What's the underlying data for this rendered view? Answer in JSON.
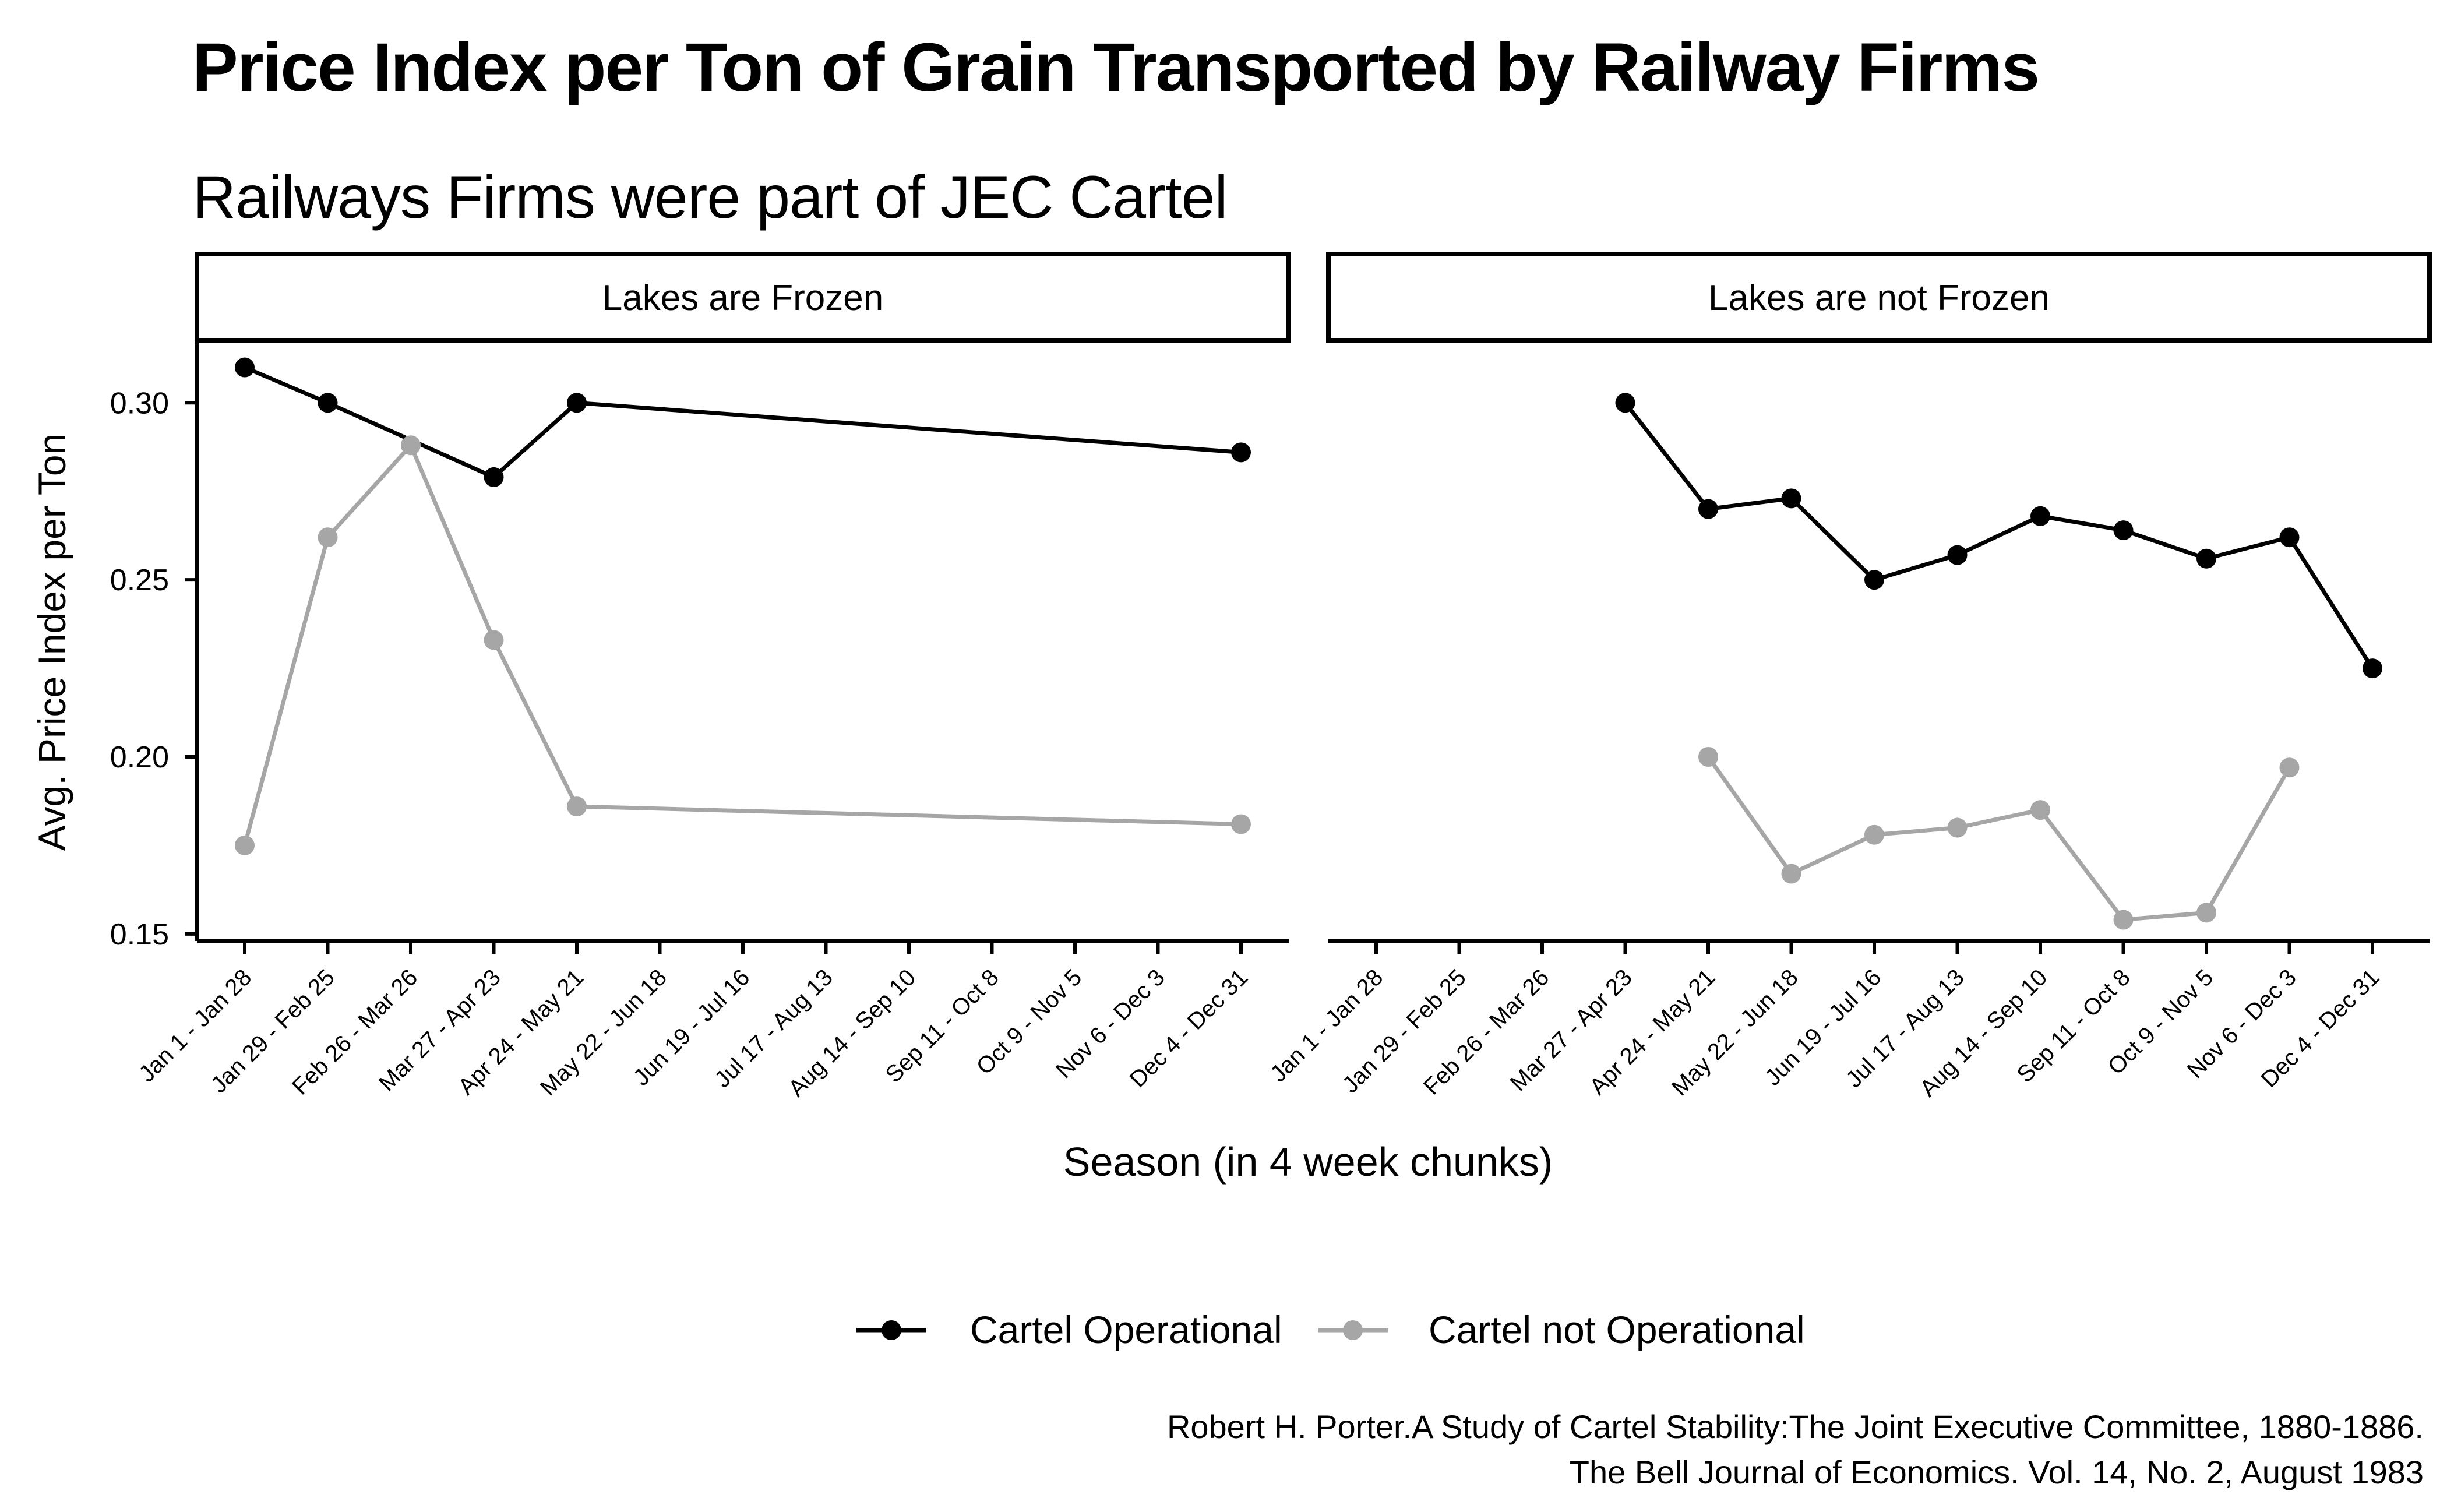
{
  "title": "Price Index per Ton of Grain Transported by Railway Firms",
  "subtitle": "Railways Firms were part of JEC Cartel",
  "caption": {
    "line1": "Robert H. Porter.A Study of Cartel Stability:The Joint Executive Committee, 1880-1886.",
    "line2": "The Bell Journal of Economics. Vol. 14, No. 2, August 1983"
  },
  "colors": {
    "cartel_operational": "#000000",
    "cartel_not_operational": "#a6a6a6"
  },
  "chart_data": {
    "type": "line",
    "xlabel": "Season (in 4 week chunks)",
    "ylabel": "Avg. Price Index per Ton",
    "ylim": [
      0.148,
      0.317
    ],
    "yticks": [
      0.15,
      0.2,
      0.25,
      0.3
    ],
    "ytick_labels": [
      "0.15",
      "0.20",
      "0.25",
      "0.30"
    ],
    "categories": [
      "Jan 1 - Jan 28",
      "Jan 29 - Feb 25",
      "Feb 26 - Mar 26",
      "Mar 27 - Apr 23",
      "Apr 24 - May 21",
      "May 22 - Jun 18",
      "Jun 19 - Jul 16",
      "Jul 17 - Aug 13",
      "Aug 14 - Sep 10",
      "Sep 11 - Oct 8",
      "Oct 9 - Nov 5",
      "Nov 6 - Dec 3",
      "Dec 4 - Dec 31"
    ],
    "legend": {
      "position": "bottom",
      "entries": [
        "Cartel Operational",
        "Cartel not Operational"
      ]
    },
    "panels": [
      {
        "label": "Lakes are Frozen",
        "series": [
          {
            "name": "Cartel Operational",
            "color": "#000000",
            "values": [
              0.31,
              0.3,
              null,
              0.279,
              0.3,
              null,
              null,
              null,
              null,
              null,
              null,
              null,
              0.286
            ]
          },
          {
            "name": "Cartel not Operational",
            "color": "#a6a6a6",
            "values": [
              0.175,
              0.262,
              0.288,
              0.233,
              0.186,
              null,
              null,
              null,
              null,
              null,
              null,
              null,
              0.181
            ]
          }
        ]
      },
      {
        "label": "Lakes are not Frozen",
        "series": [
          {
            "name": "Cartel Operational",
            "color": "#000000",
            "values": [
              null,
              null,
              null,
              0.3,
              0.27,
              0.273,
              0.25,
              0.257,
              0.268,
              0.264,
              0.256,
              0.262,
              0.225
            ]
          },
          {
            "name": "Cartel not Operational",
            "color": "#a6a6a6",
            "values": [
              null,
              null,
              null,
              null,
              0.2,
              0.167,
              0.178,
              0.18,
              0.185,
              0.154,
              0.156,
              0.197,
              null
            ]
          }
        ]
      }
    ]
  }
}
